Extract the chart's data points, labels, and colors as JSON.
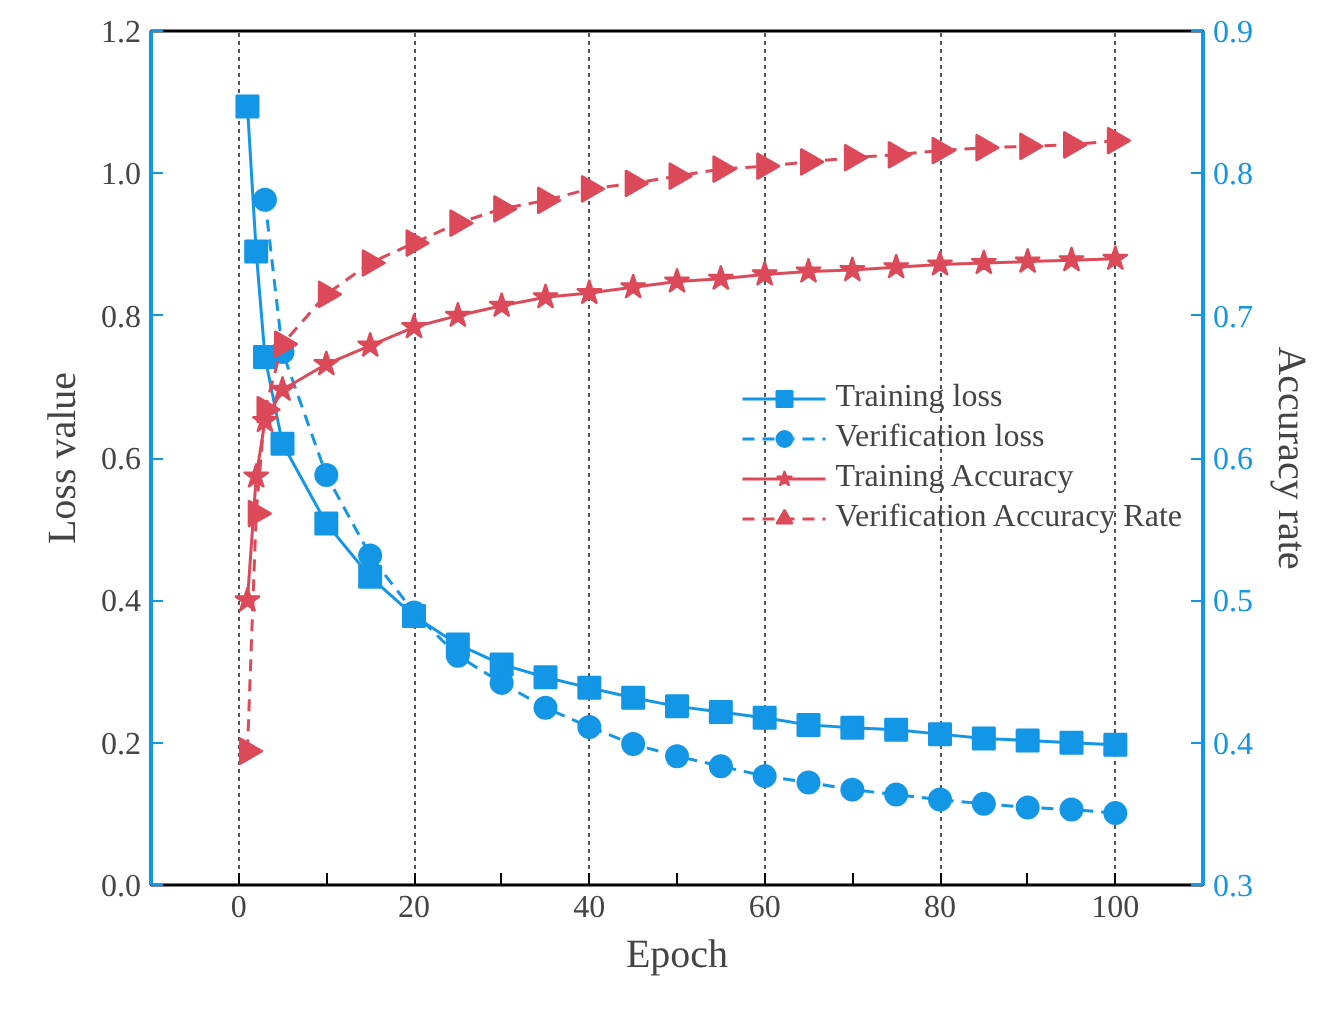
{
  "chart_data": {
    "type": "line",
    "xlabel": "Epoch",
    "ylabel": "Loss value",
    "y2label": "Accuracy rate",
    "xlim": [
      -10,
      110
    ],
    "xticks": [
      {
        "value": -10,
        "label": null
      },
      0,
      {
        "value": 10,
        "label": null
      },
      20,
      {
        "value": 30,
        "label": null
      },
      40,
      {
        "value": 50,
        "label": null
      },
      60,
      {
        "value": 70,
        "label": null
      },
      80,
      {
        "value": 90,
        "label": null
      },
      100
    ],
    "ylim": [
      0,
      1.2
    ],
    "yticks": [
      {
        "value": 0,
        "label": "0.0"
      },
      0.2,
      0.4,
      0.6,
      0.8,
      {
        "value": 1.0,
        "label": "1.0"
      },
      1.2
    ],
    "y2lim": [
      0.3,
      0.9
    ],
    "y2ticks": [
      0.3,
      0.4,
      0.5,
      0.6,
      0.7,
      0.8,
      0.9
    ],
    "grid": "x",
    "legend": "right",
    "series": [
      {
        "name": "Training loss",
        "color": "#1496e6",
        "marker": "square",
        "line_style": "solid",
        "x": [
          1,
          2,
          3,
          5,
          10,
          15,
          20,
          25,
          30,
          35,
          40,
          45,
          50,
          55,
          60,
          65,
          70,
          75,
          80,
          85,
          90,
          95,
          100
        ],
        "values": [
          1.094,
          0.89,
          0.742,
          0.62,
          0.508,
          0.433,
          0.378,
          0.338,
          0.31,
          0.292,
          0.277,
          0.263,
          0.251,
          0.243,
          0.235,
          0.225,
          0.221,
          0.218,
          0.212,
          0.206,
          0.203,
          0.2,
          0.197
        ]
      },
      {
        "name": "Verification loss",
        "color": "#1496e6",
        "marker": "circle",
        "line_style": "dashed",
        "x": [
          3,
          5,
          10,
          15,
          20,
          25,
          30,
          35,
          40,
          45,
          50,
          55,
          60,
          65,
          70,
          75,
          80,
          85,
          90,
          95,
          100
        ],
        "values": [
          0.963,
          0.749,
          0.576,
          0.463,
          0.383,
          0.322,
          0.284,
          0.249,
          0.222,
          0.198,
          0.181,
          0.167,
          0.153,
          0.144,
          0.134,
          0.127,
          0.12,
          0.114,
          0.109,
          0.106,
          0.101
        ]
      },
      {
        "name": "Training Accuracy",
        "color": "#dc4a5a",
        "marker": "star",
        "line_style": "solid",
        "axis": "y2",
        "x": [
          1,
          2,
          3,
          5,
          10,
          15,
          20,
          25,
          30,
          35,
          40,
          45,
          50,
          55,
          60,
          65,
          70,
          75,
          80,
          85,
          90,
          95,
          100
        ],
        "values": [
          0.5,
          0.587,
          0.626,
          0.648,
          0.666,
          0.679,
          0.692,
          0.7,
          0.707,
          0.713,
          0.716,
          0.72,
          0.724,
          0.726,
          0.729,
          0.731,
          0.732,
          0.734,
          0.736,
          0.737,
          0.738,
          0.739,
          0.74
        ]
      },
      {
        "name": "Verification Accuracy Rate",
        "color": "#dc4a5a",
        "marker": "triangle",
        "line_style": "dashed",
        "axis": "y2",
        "x": [
          1,
          2,
          3,
          5,
          10,
          15,
          20,
          25,
          30,
          35,
          40,
          45,
          50,
          55,
          60,
          65,
          70,
          75,
          80,
          85,
          90,
          95,
          100
        ],
        "values": [
          0.394,
          0.561,
          0.634,
          0.68,
          0.715,
          0.737,
          0.751,
          0.765,
          0.775,
          0.781,
          0.789,
          0.793,
          0.798,
          0.803,
          0.805,
          0.808,
          0.811,
          0.813,
          0.816,
          0.818,
          0.819,
          0.82,
          0.823
        ]
      }
    ]
  }
}
